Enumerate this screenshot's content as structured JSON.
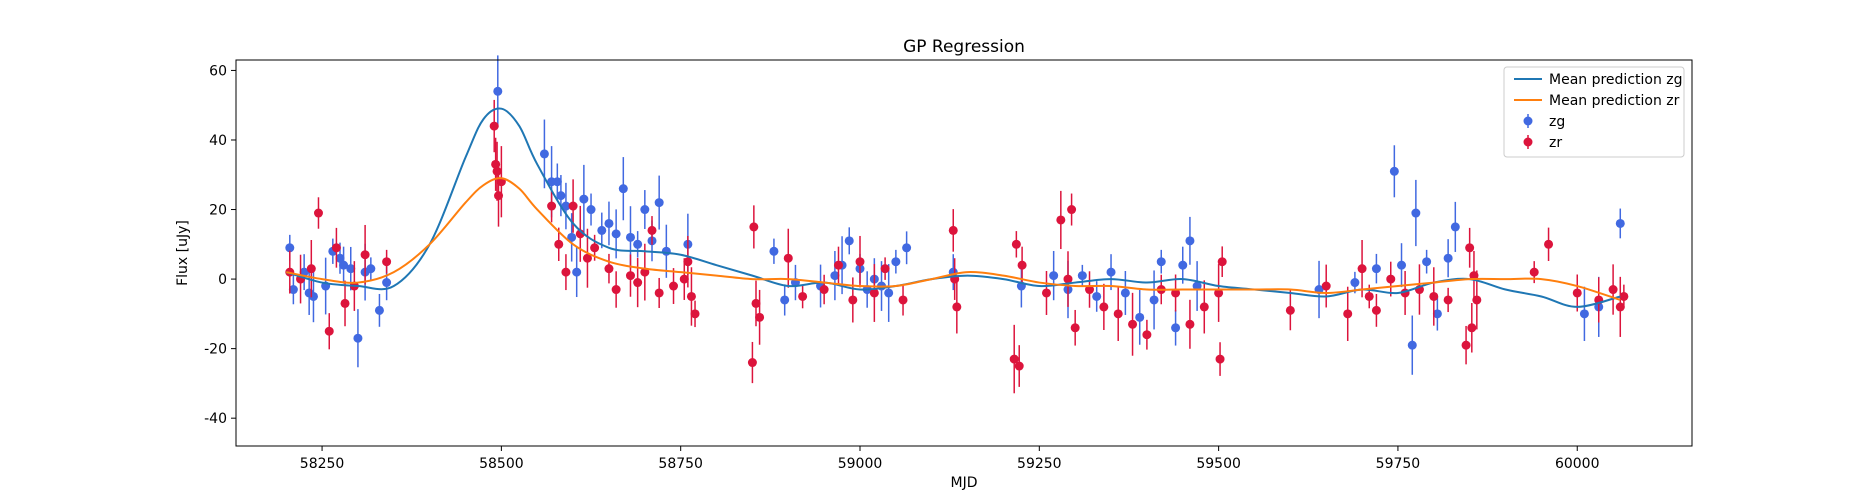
{
  "chart_data": {
    "type": "scatter",
    "title": "GP Regression",
    "xlabel": "MJD",
    "ylabel": "Flux [uJy]",
    "xlim": [
      58130,
      60160
    ],
    "ylim": [
      -48,
      63
    ],
    "xticks": [
      58250,
      58500,
      58750,
      59000,
      59250,
      59500,
      59750,
      60000
    ],
    "yticks": [
      -40,
      -20,
      0,
      20,
      40,
      60
    ],
    "grid": false,
    "legend": {
      "position": "top-right",
      "entries": [
        "Mean prediction zg",
        "Mean prediction zr",
        "zg",
        "zr"
      ]
    },
    "lines": [
      {
        "name": "Mean prediction zg",
        "color": "#1f77b4",
        "x": [
          58200,
          58250,
          58300,
          58350,
          58400,
          58450,
          58475,
          58500,
          58525,
          58550,
          58600,
          58650,
          58700,
          58750,
          58800,
          58850,
          58900,
          58950,
          59000,
          59050,
          59100,
          59150,
          59200,
          59250,
          59300,
          59350,
          59400,
          59450,
          59500,
          59550,
          59600,
          59650,
          59700,
          59750,
          59800,
          59850,
          59900,
          59950,
          60000,
          60060
        ],
        "y": [
          2,
          -1,
          -2,
          -2,
          10,
          35,
          46,
          49,
          44,
          33,
          16,
          9,
          8,
          7,
          4,
          1,
          -2,
          -1,
          -3,
          -2,
          0,
          1,
          0,
          -2,
          -1,
          0,
          -1,
          0,
          -2,
          -3,
          -4,
          -5,
          -3,
          -4,
          -1,
          0,
          -3,
          -5,
          -8,
          -5
        ]
      },
      {
        "name": "Mean prediction zr",
        "color": "#ff7f0e",
        "x": [
          58200,
          58250,
          58300,
          58350,
          58400,
          58450,
          58475,
          58500,
          58525,
          58550,
          58600,
          58650,
          58700,
          58750,
          58800,
          58850,
          58900,
          58950,
          59000,
          59050,
          59100,
          59150,
          59200,
          59250,
          59300,
          59350,
          59400,
          59450,
          59500,
          59550,
          59600,
          59650,
          59700,
          59750,
          59800,
          59850,
          59900,
          59950,
          60000,
          60060
        ],
        "y": [
          2,
          0,
          -1,
          2,
          10,
          22,
          27,
          29,
          26,
          20,
          10,
          5,
          3,
          2,
          1,
          0,
          0,
          -1,
          -2,
          -2,
          0,
          2,
          1,
          -1,
          -2,
          -2,
          -3,
          -3,
          -3,
          -3,
          -3,
          -4,
          -3,
          -2,
          -1,
          0,
          0,
          0,
          -2,
          -6
        ]
      }
    ],
    "series": [
      {
        "name": "zg",
        "color": "#4169e1",
        "x": [
          58205,
          58210,
          58225,
          58232,
          58238,
          58255,
          58265,
          58275,
          58280,
          58290,
          58300,
          58310,
          58318,
          58330,
          58340,
          58495,
          58560,
          58570,
          58578,
          58583,
          58590,
          58598,
          58605,
          58615,
          58625,
          58640,
          58650,
          58660,
          58670,
          58680,
          58690,
          58700,
          58710,
          58720,
          58730,
          58760,
          58880,
          58895,
          58910,
          58945,
          58965,
          58975,
          58985,
          59000,
          59010,
          59020,
          59030,
          59040,
          59050,
          59065,
          59130,
          59225,
          59270,
          59290,
          59310,
          59330,
          59350,
          59370,
          59390,
          59410,
          59420,
          59440,
          59450,
          59460,
          59470,
          59640,
          59690,
          59720,
          59745,
          59755,
          59770,
          59775,
          59790,
          59805,
          59820,
          59830,
          60010,
          60030,
          60060
        ],
        "y": [
          9,
          -3,
          2,
          -4,
          -5,
          -2,
          8,
          6,
          4,
          3,
          -17,
          2,
          3,
          -9,
          -1,
          54,
          36,
          28,
          28,
          24,
          21,
          12,
          2,
          23,
          20,
          14,
          16,
          13,
          26,
          12,
          10,
          20,
          11,
          22,
          8,
          10,
          8,
          -6,
          -1,
          -2,
          1,
          4,
          11,
          3,
          -3,
          0,
          -2,
          -4,
          5,
          9,
          2,
          -2,
          1,
          -3,
          1,
          -5,
          2,
          -4,
          -11,
          -6,
          5,
          -14,
          4,
          11,
          -2,
          -3,
          -1,
          3,
          31,
          4,
          -19,
          19,
          5,
          -10,
          6,
          15,
          -10,
          -8,
          16
        ]
      },
      {
        "name": "zr",
        "color": "#dc143c",
        "x": [
          58205,
          58220,
          58235,
          58245,
          58260,
          58270,
          58282,
          58295,
          58310,
          58340,
          58490,
          58492,
          58494,
          58496,
          58500,
          58570,
          58580,
          58590,
          58600,
          58610,
          58620,
          58630,
          58650,
          58660,
          58680,
          58690,
          58700,
          58710,
          58720,
          58740,
          58755,
          58760,
          58765,
          58770,
          58850,
          58852,
          58855,
          58860,
          58900,
          58920,
          58950,
          58970,
          58990,
          59000,
          59020,
          59035,
          59060,
          59130,
          59132,
          59135,
          59215,
          59218,
          59222,
          59226,
          59260,
          59280,
          59290,
          59295,
          59300,
          59320,
          59340,
          59360,
          59380,
          59400,
          59420,
          59440,
          59460,
          59480,
          59500,
          59502,
          59505,
          59600,
          59650,
          59680,
          59700,
          59710,
          59720,
          59740,
          59760,
          59780,
          59800,
          59820,
          59845,
          59850,
          59853,
          59856,
          59860,
          59940,
          59960,
          60000,
          60030,
          60050,
          60060,
          60065
        ],
        "y": [
          2,
          0,
          3,
          19,
          -15,
          9,
          -7,
          -2,
          7,
          5,
          44,
          33,
          31,
          24,
          28,
          21,
          10,
          2,
          21,
          13,
          6,
          9,
          3,
          -3,
          1,
          -1,
          2,
          14,
          -4,
          -2,
          0,
          5,
          -5,
          -10,
          -24,
          15,
          -7,
          -11,
          6,
          -5,
          -3,
          4,
          -6,
          5,
          -4,
          3,
          -6,
          14,
          0,
          -8,
          -23,
          10,
          -25,
          4,
          -4,
          17,
          0,
          20,
          -14,
          -3,
          -8,
          -10,
          -13,
          -16,
          -3,
          -4,
          -13,
          -8,
          -4,
          -23,
          5,
          -9,
          -2,
          -10,
          3,
          -5,
          -9,
          0,
          -4,
          -3,
          -5,
          -6,
          -19,
          9,
          -14,
          1,
          -6,
          2,
          10,
          -4,
          -6,
          -3,
          -8,
          -5
        ]
      }
    ]
  }
}
